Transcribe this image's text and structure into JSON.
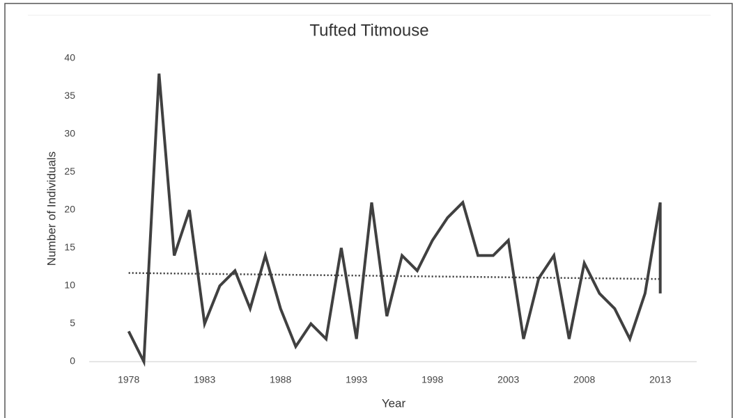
{
  "chart_data": {
    "type": "line",
    "title": "Tufted Titmouse",
    "x_label": "Year",
    "y_label": "Number of Individuals",
    "x": [
      1978,
      1979,
      1980,
      1981,
      1982,
      1983,
      1984,
      1985,
      1986,
      1987,
      1988,
      1989,
      1990,
      1991,
      1992,
      1993,
      1994,
      1995,
      1996,
      1997,
      1998,
      1999,
      2000,
      2001,
      2002,
      2003,
      2004,
      2005,
      2006,
      2007,
      2008,
      2009,
      2010,
      2011,
      2012,
      2013,
      2013
    ],
    "series": [
      {
        "color": "#404040",
        "values": [
          4,
          0,
          38,
          14,
          20,
          5,
          10,
          12,
          7,
          14,
          7,
          2,
          5,
          3,
          15,
          3,
          21,
          6,
          14,
          12,
          16,
          19,
          21,
          14,
          14,
          16,
          3,
          11,
          14,
          3,
          13,
          9,
          7,
          3,
          9,
          21,
          9
        ]
      }
    ],
    "trendline": {
      "x": [
        1978,
        2013
      ],
      "values": [
        11.7,
        10.9
      ],
      "color": "#333333",
      "style": "dotted"
    },
    "xlim": [
      1975.4,
      2015.4
    ],
    "xticks": [
      1978,
      1983,
      1988,
      1993,
      1998,
      2003,
      2008,
      2013
    ],
    "ylim": [
      0,
      40
    ],
    "yticks": [
      0,
      5,
      10,
      15,
      20,
      25,
      30,
      35,
      40
    ],
    "grid": false
  }
}
